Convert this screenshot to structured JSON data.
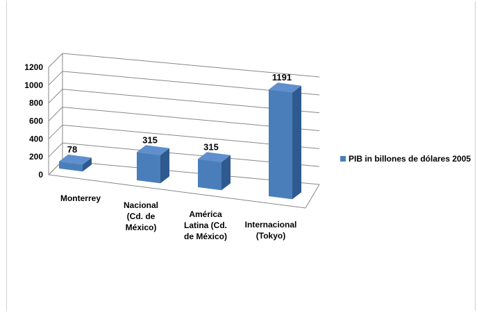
{
  "chart_data": {
    "type": "bar",
    "style": "3d-clustered-column",
    "categories": [
      [
        "Monterrey"
      ],
      [
        "Nacional",
        "(Cd. de",
        "México)"
      ],
      [
        "América",
        "Latina (Cd.",
        "de México)"
      ],
      [
        "Internacional",
        "(Tokyo)"
      ]
    ],
    "series": [
      {
        "name": "PIB in billones de dólares 2005",
        "values": [
          78,
          315,
          315,
          1191
        ]
      }
    ],
    "data_labels": [
      "78",
      "315",
      "315",
      "1191"
    ],
    "y_ticks": [
      "0",
      "200",
      "400",
      "600",
      "800",
      "1000",
      "1200"
    ],
    "ylim": [
      0,
      1200
    ],
    "grid": true,
    "legend_position": "right",
    "colors": {
      "bar_front": "#4a7ebb",
      "bar_side": "#2e5a8f",
      "bar_top": "#5f8fcc",
      "grid": "#868686"
    }
  }
}
